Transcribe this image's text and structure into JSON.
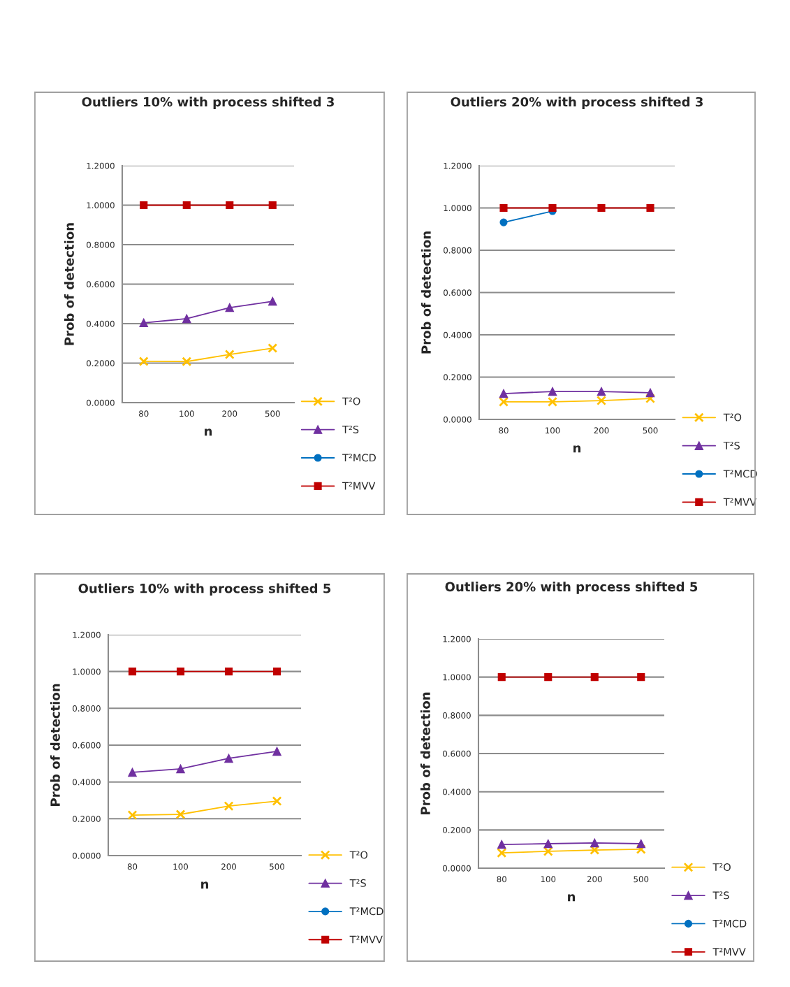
{
  "chart_data": [
    {
      "type": "line",
      "title": "Outliers 10% with process shifted 3",
      "xlabel": "n",
      "ylabel": "Prob of detection",
      "categories": [
        "80",
        "100",
        "200",
        "500"
      ],
      "ylim": [
        0,
        1.2
      ],
      "yticks": [
        {
          "value": 0,
          "label": "0.0000"
        },
        {
          "value": 0.2,
          "label": "0.2000"
        },
        {
          "value": 0.4,
          "label": "0.4000"
        },
        {
          "value": 0.6,
          "label": "0.6000"
        },
        {
          "value": 0.8,
          "label": "0.8000"
        },
        {
          "value": 1.0,
          "label": "1.0000"
        },
        {
          "value": 1.2,
          "label": "1.2000"
        }
      ],
      "grid": "y",
      "legend": "right",
      "series": [
        {
          "name": "T²O",
          "color": "#ffc000",
          "marker": "cross",
          "values": [
            0.209,
            0.208,
            0.244,
            0.276
          ]
        },
        {
          "name": "T²S",
          "color": "#7030a0",
          "marker": "triangle",
          "values": [
            0.404,
            0.425,
            0.481,
            0.513
          ]
        },
        {
          "name": "T²MCD",
          "color": "#0070c0",
          "marker": "circle",
          "values": [
            null,
            null,
            null,
            null
          ]
        },
        {
          "name": "T²MVV",
          "color": "#c00000",
          "marker": "square",
          "values": [
            1.0,
            1.0,
            1.0,
            1.0
          ]
        }
      ]
    },
    {
      "type": "line",
      "title": "Outliers 20% with process shifted 3",
      "xlabel": "n",
      "ylabel": "Prob of detection",
      "categories": [
        "80",
        "100",
        "200",
        "500"
      ],
      "ylim": [
        0,
        1.2
      ],
      "yticks": [
        {
          "value": 0,
          "label": "0.0000"
        },
        {
          "value": 0.2,
          "label": "0.2000"
        },
        {
          "value": 0.4,
          "label": "0.4000"
        },
        {
          "value": 0.6,
          "label": "0.6000"
        },
        {
          "value": 0.8,
          "label": "0.8000"
        },
        {
          "value": 1.0,
          "label": "1.0000"
        },
        {
          "value": 1.2,
          "label": "1.2000"
        }
      ],
      "grid": "y",
      "legend": "right",
      "series": [
        {
          "name": "T²O",
          "color": "#ffc000",
          "marker": "cross",
          "values": [
            0.083,
            0.083,
            0.089,
            0.099
          ]
        },
        {
          "name": "T²S",
          "color": "#7030a0",
          "marker": "triangle",
          "values": [
            0.122,
            0.132,
            0.132,
            0.126
          ]
        },
        {
          "name": "T²MCD",
          "color": "#0070c0",
          "marker": "circle",
          "values": [
            0.932,
            0.985,
            null,
            null
          ]
        },
        {
          "name": "T²MVV",
          "color": "#c00000",
          "marker": "square",
          "values": [
            1.0,
            1.0,
            1.0,
            1.0
          ]
        }
      ]
    },
    {
      "type": "line",
      "title": "Outliers 10% with process shifted 5",
      "xlabel": "n",
      "ylabel": "Prob of detection",
      "categories": [
        "80",
        "100",
        "200",
        "500"
      ],
      "ylim": [
        0,
        1.2
      ],
      "yticks": [
        {
          "value": 0,
          "label": "0.0000"
        },
        {
          "value": 0.2,
          "label": "0.2000"
        },
        {
          "value": 0.4,
          "label": "0.4000"
        },
        {
          "value": 0.6,
          "label": "0.6000"
        },
        {
          "value": 0.8,
          "label": "0.8000"
        },
        {
          "value": 1.0,
          "label": "1.0000"
        },
        {
          "value": 1.2,
          "label": "1.2000"
        }
      ],
      "grid": "y",
      "legend": "right",
      "series": [
        {
          "name": "T²O",
          "color": "#ffc000",
          "marker": "cross",
          "values": [
            0.22,
            0.224,
            0.269,
            0.296
          ]
        },
        {
          "name": "T²S",
          "color": "#7030a0",
          "marker": "triangle",
          "values": [
            0.452,
            0.471,
            0.528,
            0.566
          ]
        },
        {
          "name": "T²MCD",
          "color": "#0070c0",
          "marker": "circle",
          "values": [
            null,
            null,
            null,
            null
          ]
        },
        {
          "name": "T²MVV",
          "color": "#c00000",
          "marker": "square",
          "values": [
            1.0,
            1.0,
            1.0,
            1.0
          ]
        }
      ]
    },
    {
      "type": "line",
      "title": "Outliers 20% with process shifted 5",
      "xlabel": "n",
      "ylabel": "Prob of detection",
      "categories": [
        "80",
        "100",
        "200",
        "500"
      ],
      "ylim": [
        0,
        1.2
      ],
      "yticks": [
        {
          "value": 0,
          "label": "0.0000"
        },
        {
          "value": 0.2,
          "label": "0.2000"
        },
        {
          "value": 0.4,
          "label": "0.4000"
        },
        {
          "value": 0.6,
          "label": "0.6000"
        },
        {
          "value": 0.8,
          "label": "0.8000"
        },
        {
          "value": 1.0,
          "label": "1.0000"
        },
        {
          "value": 1.2,
          "label": "1.2000"
        }
      ],
      "grid": "y",
      "legend": "right",
      "series": [
        {
          "name": "T²O",
          "color": "#ffc000",
          "marker": "cross",
          "values": [
            0.08,
            0.088,
            0.095,
            0.099
          ]
        },
        {
          "name": "T²S",
          "color": "#7030a0",
          "marker": "triangle",
          "values": [
            0.124,
            0.128,
            0.132,
            0.128
          ]
        },
        {
          "name": "T²MCD",
          "color": "#0070c0",
          "marker": "circle",
          "values": [
            null,
            null,
            null,
            null
          ]
        },
        {
          "name": "T²MVV",
          "color": "#c00000",
          "marker": "square",
          "values": [
            1.0,
            1.0,
            1.0,
            1.0
          ]
        }
      ]
    }
  ]
}
